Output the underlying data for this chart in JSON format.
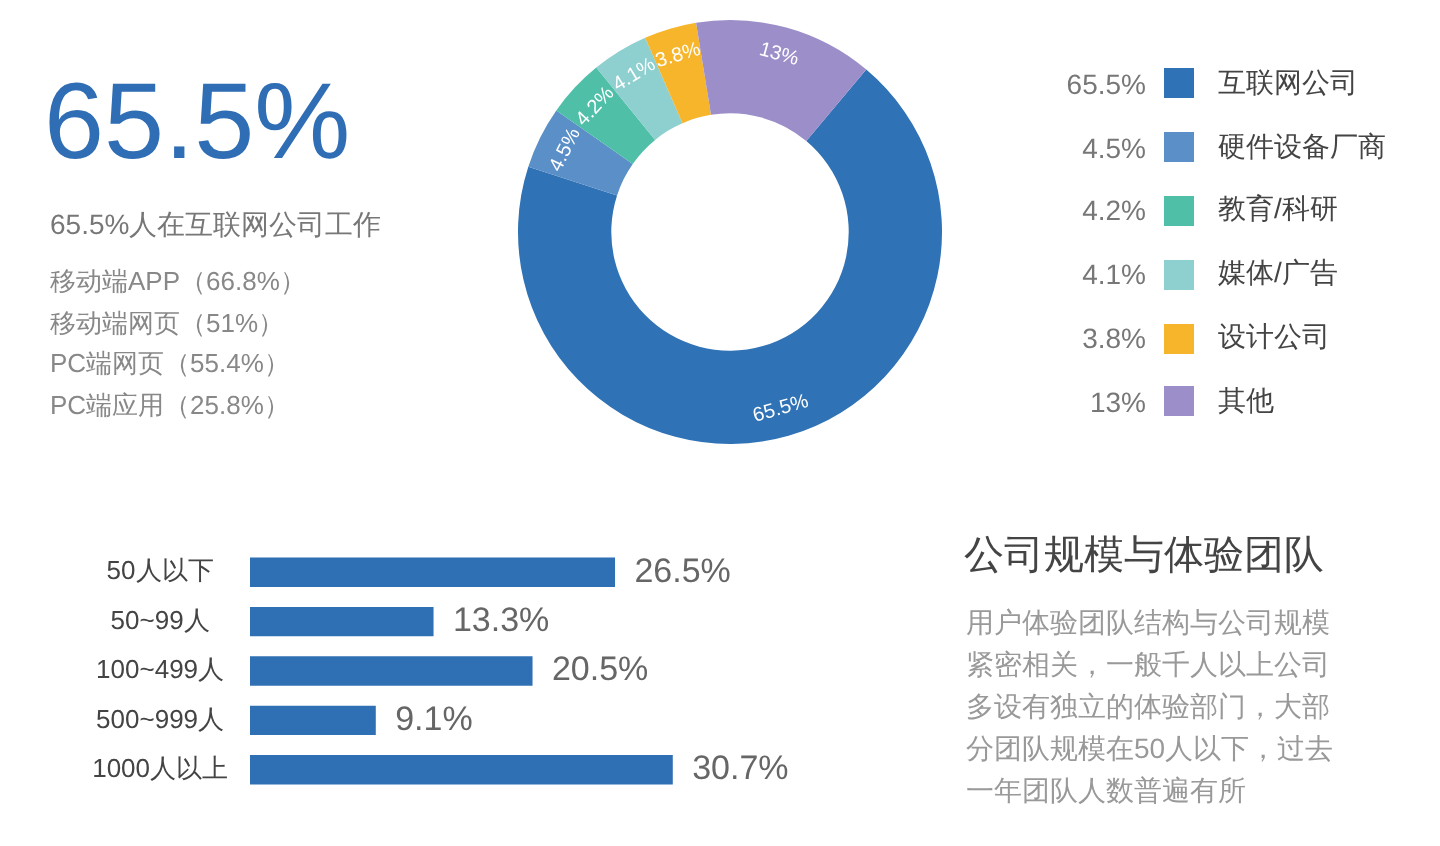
{
  "chart_data": [
    {
      "type": "donut",
      "title": "65.5%",
      "subtitle": "65.5%人在互联网公司工作",
      "annotations": [
        "移动端APP（66.8%）",
        "移动端网页（51%）",
        "PC端网页（55.4%）",
        "PC端应用（25.8%）"
      ],
      "categories": [
        "互联网公司",
        "硬件设备厂商",
        "教育/科研",
        "媒体/广告",
        "设计公司",
        "其他"
      ],
      "values": [
        65.5,
        4.5,
        4.2,
        4.1,
        3.8,
        13
      ],
      "colors": [
        "#2f72b5",
        "#5a8fc8",
        "#4fbfa8",
        "#8ecfcf",
        "#f6b52a",
        "#9b8ec9"
      ],
      "value_labels": [
        "65.5%",
        "4.5%",
        "4.2%",
        "4.1%",
        "3.8%",
        "13%"
      ],
      "legend": "right"
    },
    {
      "type": "bar",
      "orientation": "horizontal",
      "categories": [
        "50人以下",
        "50~99人",
        "100~499人",
        "500~999人",
        "1000人以上"
      ],
      "values": [
        26.5,
        13.3,
        20.5,
        9.1,
        30.7
      ],
      "color": "#2f6fb4",
      "value_labels": [
        "26.5%",
        "13.3%",
        "20.5%",
        "9.1%",
        "30.7%"
      ],
      "tick_labels": "y"
    },
    {
      "type": "other",
      "title": "公司规模与体验团队",
      "annotations": [
        "用户体验团队结构与公司规模紧密相关，一般千人以上公司多设有独立的体验部门，大部分团队规模在50人以下，过去一年团队人数普遍有所"
      ]
    }
  ]
}
